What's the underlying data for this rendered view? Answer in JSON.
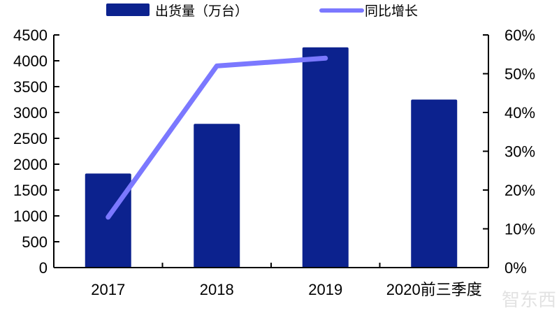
{
  "legend": {
    "bar_label": "出货量（万台）",
    "line_label": "同比增长"
  },
  "colors": {
    "bar": "#0c228e",
    "line": "#7b78ff",
    "axis": "#000000"
  },
  "watermark": "智东西",
  "chart_data": {
    "type": "bar",
    "title": "",
    "categories": [
      "2017",
      "2018",
      "2019",
      "2020前三季度"
    ],
    "series": [
      {
        "name": "出货量（万台）",
        "type": "bar",
        "axis": "left",
        "values": [
          1820,
          2780,
          4260,
          3250
        ]
      },
      {
        "name": "同比增长",
        "type": "line",
        "axis": "right",
        "values": [
          0.13,
          0.52,
          0.54,
          null
        ]
      }
    ],
    "xlabel": "",
    "ylabel": "",
    "ylim": [
      0,
      4500
    ],
    "y2lim": [
      0,
      0.6
    ],
    "yticks": [
      "0",
      "500",
      "1000",
      "1500",
      "2000",
      "2500",
      "3000",
      "3500",
      "4000",
      "4500"
    ],
    "y2ticks": [
      "0%",
      "10%",
      "20%",
      "30%",
      "40%",
      "50%",
      "60%"
    ],
    "grid": false,
    "legend_position": "top"
  }
}
